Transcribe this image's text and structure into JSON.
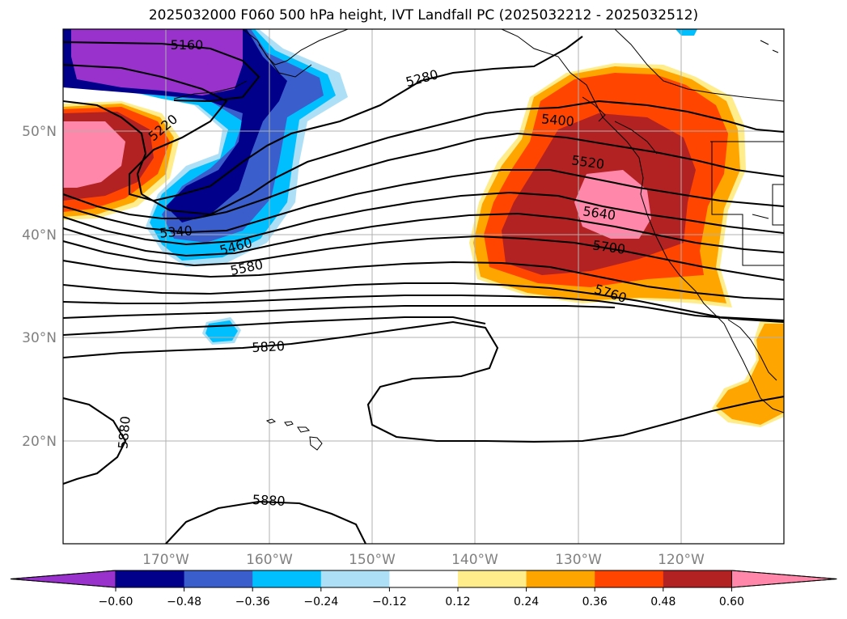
{
  "title": "2025032000 F060 500 hPa height, IVT Landfall PC (2025032212 - 2025032512)",
  "map": {
    "lon_labels": [
      "170°W",
      "160°W",
      "150°W",
      "140°W",
      "130°W",
      "120°W"
    ],
    "lat_labels": [
      "50°N",
      "40°N",
      "30°N",
      "20°N"
    ],
    "height_contour_labels": [
      "5160",
      "5220",
      "5280",
      "5340",
      "5400",
      "5460",
      "5520",
      "5580",
      "5640",
      "5700",
      "5760",
      "5820",
      "5880",
      "5880"
    ]
  },
  "colorbar": {
    "ticks": [
      "−0.60",
      "−0.48",
      "−0.36",
      "−0.24",
      "−0.12",
      "0.12",
      "0.24",
      "0.36",
      "0.48",
      "0.60"
    ],
    "colors": [
      "#9932CC",
      "#00008B",
      "#3A5FCD",
      "#00BFFF",
      "#ADE0F7",
      "#FFFFFF",
      "#FFEC8B",
      "#FFA500",
      "#FF4500",
      "#B22222",
      "#FF88AA"
    ]
  }
}
